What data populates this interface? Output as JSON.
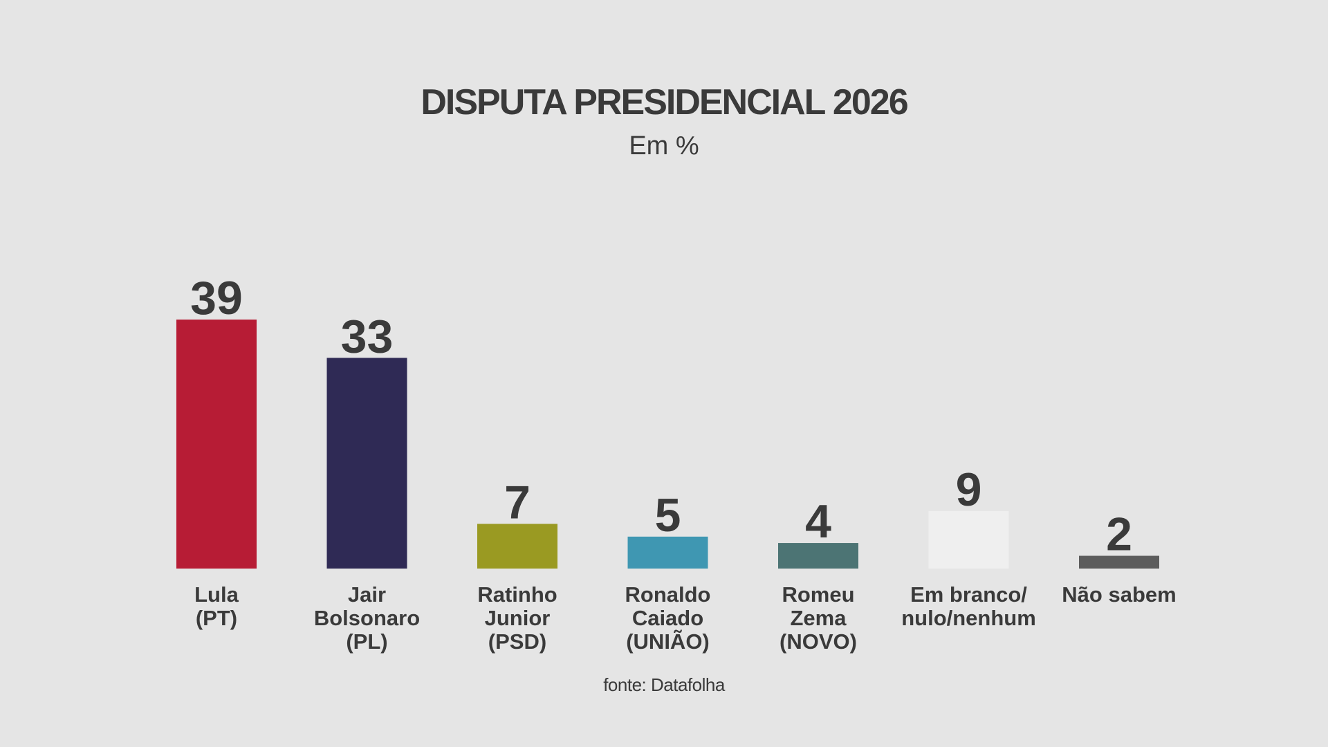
{
  "header": {
    "title": "DISPUTA PRESIDENCIAL 2026",
    "subtitle": "Em %"
  },
  "footer": {
    "source": "fonte: Datafolha"
  },
  "chart_data": {
    "type": "bar",
    "title": "DISPUTA PRESIDENCIAL 2026",
    "subtitle": "Em %",
    "categories": [
      [
        "Lula",
        "(PT)"
      ],
      [
        "Jair",
        "Bolsonaro",
        "(PL)"
      ],
      [
        "Ratinho",
        "Junior",
        "(PSD)"
      ],
      [
        "Ronaldo",
        "Caiado",
        "(UNIÃO)"
      ],
      [
        "Romeu",
        "Zema",
        "(NOVO)"
      ],
      [
        "Em branco/",
        "nulo/nenhum"
      ],
      [
        "Não sabem"
      ]
    ],
    "values": [
      39,
      33,
      7,
      5,
      4,
      9,
      2
    ],
    "colors": [
      "#b71c35",
      "#2f2a55",
      "#9a9a22",
      "#3f97b2",
      "#4c7474",
      "#efefef",
      "#5c5c5c"
    ],
    "ylim": [
      0,
      39
    ],
    "grid": false,
    "legend": "none",
    "data_labels": true,
    "source": "fonte: Datafolha"
  }
}
